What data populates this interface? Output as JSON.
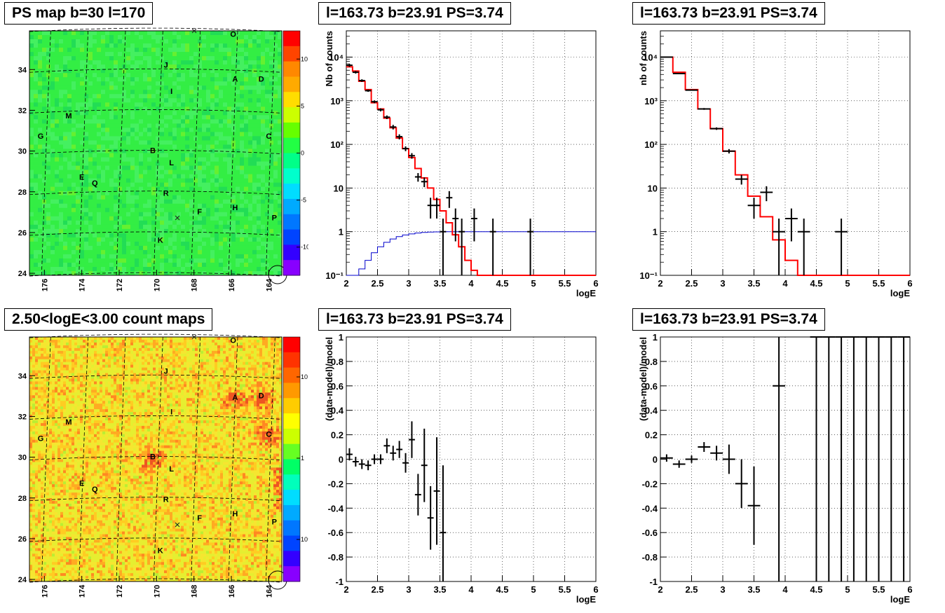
{
  "panels": {
    "map_ps": {
      "title": "PS map b=30 l=170",
      "xticks": [
        "176",
        "174",
        "172",
        "170",
        "168",
        "166",
        "164"
      ],
      "yticks": [
        "24",
        "26",
        "28",
        "30",
        "32",
        "34"
      ],
      "zticks": [
        "10",
        "5",
        "0",
        "-5",
        "-10"
      ]
    },
    "map_counts": {
      "title": "2.50<logE<3.00 count maps",
      "xticks": [
        "176",
        "174",
        "172",
        "170",
        "168",
        "166",
        "164"
      ],
      "yticks": [
        "24",
        "26",
        "28",
        "30",
        "32",
        "34"
      ],
      "zticks": [
        "10",
        "1",
        "10⁻¹"
      ]
    },
    "spec_a": {
      "title": "l=163.73 b=23.91 PS=3.74"
    },
    "spec_b": {
      "title": "l=163.73 b=23.91 PS=3.74"
    },
    "res_a": {
      "title": "l=163.73 b=23.91 PS=3.74"
    },
    "res_b": {
      "title": "l=163.73 b=23.91 PS=3.74"
    }
  },
  "source_labels": [
    "O",
    "J",
    "A",
    "D",
    "I",
    "M",
    "G",
    "C",
    "B",
    "L",
    "E",
    "Q",
    "R",
    "F",
    "H",
    "P",
    "K"
  ],
  "colors": {
    "model": "#ff0000",
    "acceptance": "#0000cc",
    "data": "#000000",
    "ps_map_base": "#33ee44",
    "count_map_base": "#ddee33"
  },
  "chart_data": [
    {
      "type": "heatmap",
      "title": "PS map b=30 l=170",
      "xlim": [
        176.8,
        163.3
      ],
      "ylim": [
        23.9,
        35.9
      ],
      "xticks": [
        176,
        174,
        172,
        170,
        168,
        166,
        164
      ],
      "yticks": [
        24,
        26,
        28,
        30,
        32,
        34
      ],
      "zlim": [
        -13,
        13
      ],
      "zticks": [
        10,
        5,
        0,
        -5,
        -10
      ],
      "sources": [
        {
          "label": "O",
          "l": 165.9,
          "b": 35.6
        },
        {
          "label": "J",
          "l": 169.5,
          "b": 34.1
        },
        {
          "label": "A",
          "l": 165.8,
          "b": 33.4
        },
        {
          "label": "D",
          "l": 164.4,
          "b": 33.4
        },
        {
          "label": "I",
          "l": 169.2,
          "b": 32.8
        },
        {
          "label": "M",
          "l": 174.7,
          "b": 31.6
        },
        {
          "label": "G",
          "l": 176.2,
          "b": 30.6
        },
        {
          "label": "C",
          "l": 164.0,
          "b": 30.6
        },
        {
          "label": "B",
          "l": 170.2,
          "b": 29.9
        },
        {
          "label": "L",
          "l": 169.2,
          "b": 29.3
        },
        {
          "label": "E",
          "l": 174.0,
          "b": 28.6
        },
        {
          "label": "Q",
          "l": 173.3,
          "b": 28.3
        },
        {
          "label": "R",
          "l": 169.5,
          "b": 27.8
        },
        {
          "label": "F",
          "l": 167.7,
          "b": 26.9
        },
        {
          "label": "H",
          "l": 165.8,
          "b": 27.1
        },
        {
          "label": "P",
          "l": 163.7,
          "b": 26.6
        },
        {
          "label": "K",
          "l": 169.8,
          "b": 25.5
        }
      ]
    },
    {
      "type": "heatmap",
      "title": "2.50<logE<3.00 count maps",
      "xlim": [
        176.8,
        163.3
      ],
      "ylim": [
        23.9,
        35.9
      ],
      "xticks": [
        176,
        174,
        172,
        170,
        168,
        166,
        164
      ],
      "yticks": [
        24,
        26,
        28,
        30,
        32,
        34
      ],
      "zscale": "log",
      "zticks": [
        10,
        1,
        0.1
      ],
      "sources": [
        {
          "label": "O",
          "l": 165.9,
          "b": 35.6
        },
        {
          "label": "J",
          "l": 169.5,
          "b": 34.1
        },
        {
          "label": "A",
          "l": 165.8,
          "b": 32.8
        },
        {
          "label": "D",
          "l": 164.4,
          "b": 32.9
        },
        {
          "label": "I",
          "l": 169.2,
          "b": 32.1
        },
        {
          "label": "M",
          "l": 174.7,
          "b": 31.6
        },
        {
          "label": "G",
          "l": 176.2,
          "b": 30.8
        },
        {
          "label": "C",
          "l": 164.0,
          "b": 31.0
        },
        {
          "label": "B",
          "l": 170.2,
          "b": 29.9
        },
        {
          "label": "L",
          "l": 169.2,
          "b": 29.3
        },
        {
          "label": "E",
          "l": 174.0,
          "b": 28.6
        },
        {
          "label": "Q",
          "l": 173.3,
          "b": 28.3
        },
        {
          "label": "R",
          "l": 169.5,
          "b": 27.8
        },
        {
          "label": "F",
          "l": 167.7,
          "b": 26.9
        },
        {
          "label": "H",
          "l": 165.8,
          "b": 27.1
        },
        {
          "label": "P",
          "l": 163.7,
          "b": 26.7
        },
        {
          "label": "K",
          "l": 169.8,
          "b": 25.3
        }
      ]
    },
    {
      "type": "line",
      "title": "l=163.73 b=23.91 PS=3.74",
      "xlabel": "logE",
      "ylabel": "Nb of counts",
      "xlim": [
        2,
        6
      ],
      "ylim": [
        0.1,
        40000
      ],
      "yscale": "log",
      "xticks": [
        2,
        2.5,
        3,
        3.5,
        4,
        4.5,
        5,
        5.5,
        6
      ],
      "ytick_labels": [
        "10⁻¹",
        "1",
        "10",
        "10²",
        "10³",
        "10⁴"
      ],
      "model_step": {
        "x": [
          2,
          2.1,
          2.2,
          2.3,
          2.4,
          2.5,
          2.6,
          2.7,
          2.8,
          2.9,
          3.0,
          3.1,
          3.2,
          3.3,
          3.4,
          3.5,
          3.6,
          3.7,
          3.8,
          3.9,
          4.0,
          4.1,
          4.2,
          4.3,
          4.4,
          4.5,
          4.6,
          4.7,
          4.8,
          4.9,
          5.0,
          5.1,
          5.2,
          5.3,
          5.4,
          5.5,
          5.6,
          5.7,
          5.8,
          5.9
        ],
        "y": [
          6000,
          4800,
          2800,
          1800,
          900,
          650,
          400,
          240,
          140,
          80,
          50,
          28,
          17,
          10,
          5.5,
          3,
          1.6,
          0.85,
          0.45,
          0.22,
          0.13,
          0.1,
          0.1,
          0.1,
          0.1,
          0.1,
          0.1,
          0.1,
          0.1,
          0.1,
          0.1,
          0.1,
          0.1,
          0.1,
          0.1,
          0.1,
          0.1,
          0.1,
          0.1,
          0.1
        ]
      },
      "acceptance_step": {
        "x": [
          2,
          2.1,
          2.2,
          2.3,
          2.4,
          2.5,
          2.6,
          2.7,
          2.8,
          2.9,
          3.0,
          3.1,
          3.2,
          3.3,
          3.4,
          3.5,
          3.6,
          3.7,
          3.8,
          3.9,
          4.0,
          4.5,
          5.0,
          5.5
        ],
        "y": [
          0.05,
          0.09,
          0.14,
          0.22,
          0.33,
          0.45,
          0.57,
          0.68,
          0.77,
          0.84,
          0.89,
          0.93,
          0.96,
          0.98,
          0.99,
          1.0,
          1.0,
          1.0,
          1.0,
          1.0,
          1.0,
          1.0,
          1.0,
          1.0
        ]
      },
      "data_points": [
        {
          "x": 2.05,
          "y": 6500,
          "ylo": 6000,
          "yhi": 7000
        },
        {
          "x": 2.15,
          "y": 4500,
          "ylo": 4200,
          "yhi": 4800
        },
        {
          "x": 2.25,
          "y": 2900,
          "ylo": 2700,
          "yhi": 3100
        },
        {
          "x": 2.35,
          "y": 1700,
          "ylo": 1600,
          "yhi": 1800
        },
        {
          "x": 2.45,
          "y": 950,
          "ylo": 880,
          "yhi": 1020
        },
        {
          "x": 2.55,
          "y": 620,
          "ylo": 570,
          "yhi": 670
        },
        {
          "x": 2.65,
          "y": 420,
          "ylo": 380,
          "yhi": 460
        },
        {
          "x": 2.75,
          "y": 250,
          "ylo": 220,
          "yhi": 280
        },
        {
          "x": 2.85,
          "y": 150,
          "ylo": 130,
          "yhi": 170
        },
        {
          "x": 2.95,
          "y": 80,
          "ylo": 70,
          "yhi": 90
        },
        {
          "x": 3.05,
          "y": 55,
          "ylo": 47,
          "yhi": 63
        },
        {
          "x": 3.15,
          "y": 18,
          "ylo": 14,
          "yhi": 22
        },
        {
          "x": 3.25,
          "y": 14,
          "ylo": 10.5,
          "yhi": 17.5
        },
        {
          "x": 3.35,
          "y": 4,
          "ylo": 2,
          "yhi": 6
        },
        {
          "x": 3.45,
          "y": 4,
          "ylo": 2,
          "yhi": 6
        },
        {
          "x": 3.55,
          "y": 1,
          "ylo": 0.1,
          "yhi": 2
        },
        {
          "x": 3.65,
          "y": 6,
          "ylo": 3.5,
          "yhi": 8.5
        },
        {
          "x": 3.75,
          "y": 2,
          "ylo": 0.6,
          "yhi": 3.4
        },
        {
          "x": 3.85,
          "y": 1,
          "ylo": 0.1,
          "yhi": 2
        },
        {
          "x": 4.05,
          "y": 2,
          "ylo": 0.6,
          "yhi": 3.4
        },
        {
          "x": 4.35,
          "y": 1,
          "ylo": 0.1,
          "yhi": 2
        },
        {
          "x": 4.95,
          "y": 1,
          "ylo": 0.1,
          "yhi": 2
        }
      ]
    },
    {
      "type": "line",
      "title": "l=163.73 b=23.91 PS=3.74",
      "xlabel": "logE",
      "ylabel": "nb of counts",
      "xlim": [
        2,
        6
      ],
      "ylim": [
        0.1,
        40000
      ],
      "yscale": "log",
      "xticks": [
        2,
        2.5,
        3,
        3.5,
        4,
        4.5,
        5,
        5.5,
        6
      ],
      "ytick_labels": [
        "10⁻¹",
        "1",
        "10",
        "10²",
        "10³",
        "10⁴"
      ],
      "model_step": {
        "x": [
          2,
          2.2,
          2.4,
          2.6,
          2.8,
          3.0,
          3.2,
          3.4,
          3.6,
          3.8,
          4.0,
          4.2,
          4.4,
          4.6,
          4.8,
          5.0,
          5.2,
          5.4,
          5.6,
          5.8
        ],
        "y": [
          10000,
          4500,
          1800,
          650,
          230,
          70,
          20,
          6.5,
          2.2,
          0.65,
          0.22,
          0.1,
          0.1,
          0.1,
          0.1,
          0.1,
          0.1,
          0.1,
          0.1,
          0.1
        ]
      },
      "data_points": [
        {
          "x": 2.1,
          "y": 10000,
          "ylo": 9800,
          "yhi": 10200
        },
        {
          "x": 2.3,
          "y": 4200,
          "ylo": 4050,
          "yhi": 4350
        },
        {
          "x": 2.5,
          "y": 1750,
          "ylo": 1700,
          "yhi": 1800
        },
        {
          "x": 2.7,
          "y": 650,
          "ylo": 620,
          "yhi": 680
        },
        {
          "x": 2.9,
          "y": 230,
          "ylo": 215,
          "yhi": 245
        },
        {
          "x": 3.1,
          "y": 70,
          "ylo": 62,
          "yhi": 78
        },
        {
          "x": 3.3,
          "y": 16,
          "ylo": 12,
          "yhi": 20
        },
        {
          "x": 3.5,
          "y": 4,
          "ylo": 2,
          "yhi": 6
        },
        {
          "x": 3.7,
          "y": 8,
          "ylo": 5,
          "yhi": 11
        },
        {
          "x": 3.9,
          "y": 1,
          "ylo": 0.1,
          "yhi": 2
        },
        {
          "x": 4.1,
          "y": 2,
          "ylo": 0.6,
          "yhi": 3.4
        },
        {
          "x": 4.3,
          "y": 1,
          "ylo": 0.1,
          "yhi": 2
        },
        {
          "x": 4.9,
          "y": 1,
          "ylo": 0.1,
          "yhi": 2
        }
      ]
    },
    {
      "type": "scatter",
      "title": "l=163.73 b=23.91 PS=3.74",
      "xlabel": "logE",
      "ylabel": "(data-model)/model",
      "xlim": [
        2,
        6
      ],
      "ylim": [
        -1,
        1
      ],
      "xticks": [
        2,
        2.5,
        3,
        3.5,
        4,
        4.5,
        5,
        5.5,
        6
      ],
      "yticks": [
        -1,
        -0.8,
        -0.6,
        -0.4,
        -0.2,
        0,
        0.2,
        0.4,
        0.6,
        0.8,
        1
      ],
      "data_points": [
        {
          "x": 2.05,
          "y": 0.04,
          "err": 0.05
        },
        {
          "x": 2.15,
          "y": -0.02,
          "err": 0.04
        },
        {
          "x": 2.25,
          "y": -0.04,
          "err": 0.04
        },
        {
          "x": 2.35,
          "y": -0.05,
          "err": 0.04
        },
        {
          "x": 2.45,
          "y": 0.0,
          "err": 0.04
        },
        {
          "x": 2.55,
          "y": 0.0,
          "err": 0.04
        },
        {
          "x": 2.65,
          "y": 0.11,
          "err": 0.06
        },
        {
          "x": 2.75,
          "y": 0.05,
          "err": 0.06
        },
        {
          "x": 2.85,
          "y": 0.08,
          "err": 0.07
        },
        {
          "x": 2.95,
          "y": -0.03,
          "err": 0.08
        },
        {
          "x": 3.05,
          "y": 0.16,
          "err": 0.15
        },
        {
          "x": 3.15,
          "y": -0.29,
          "err": 0.17
        },
        {
          "x": 3.25,
          "y": -0.05,
          "err": 0.3
        },
        {
          "x": 3.35,
          "y": -0.48,
          "err": 0.26
        },
        {
          "x": 3.45,
          "y": -0.26,
          "err": 0.44
        },
        {
          "x": 3.55,
          "y": -0.6,
          "err": 0.55
        }
      ]
    },
    {
      "type": "scatter",
      "title": "l=163.73 b=23.91 PS=3.74",
      "xlabel": "logE",
      "ylabel": "(data-model)/model",
      "xlim": [
        2,
        6
      ],
      "ylim": [
        -1,
        1
      ],
      "xticks": [
        2,
        2.5,
        3,
        3.5,
        4,
        4.5,
        5,
        5.5,
        6
      ],
      "yticks": [
        -1,
        -0.8,
        -0.6,
        -0.4,
        -0.2,
        0,
        0.2,
        0.4,
        0.6,
        0.8,
        1
      ],
      "data_points": [
        {
          "x": 2.1,
          "y": 0.01,
          "err": 0.03
        },
        {
          "x": 2.3,
          "y": -0.04,
          "err": 0.03
        },
        {
          "x": 2.5,
          "y": 0.0,
          "err": 0.03
        },
        {
          "x": 2.7,
          "y": 0.1,
          "err": 0.04
        },
        {
          "x": 2.9,
          "y": 0.05,
          "err": 0.06
        },
        {
          "x": 3.1,
          "y": 0.0,
          "err": 0.12
        },
        {
          "x": 3.3,
          "y": -0.2,
          "err": 0.2
        },
        {
          "x": 3.5,
          "y": -0.38,
          "err": 0.32
        },
        {
          "x": 3.9,
          "y": 0.6,
          "err": 1.6
        },
        {
          "x": 4.5,
          "y": 1.0,
          "err": 2.0
        },
        {
          "x": 4.7,
          "y": 1.0,
          "err": 2.0
        },
        {
          "x": 4.9,
          "y": 1.0,
          "err": 2.0
        },
        {
          "x": 5.1,
          "y": 1.0,
          "err": 2.0
        },
        {
          "x": 5.3,
          "y": 1.0,
          "err": 2.0
        },
        {
          "x": 5.5,
          "y": 1.0,
          "err": 2.0
        },
        {
          "x": 5.7,
          "y": 1.0,
          "err": 2.0
        },
        {
          "x": 5.9,
          "y": 1.0,
          "err": 2.0
        }
      ]
    }
  ]
}
